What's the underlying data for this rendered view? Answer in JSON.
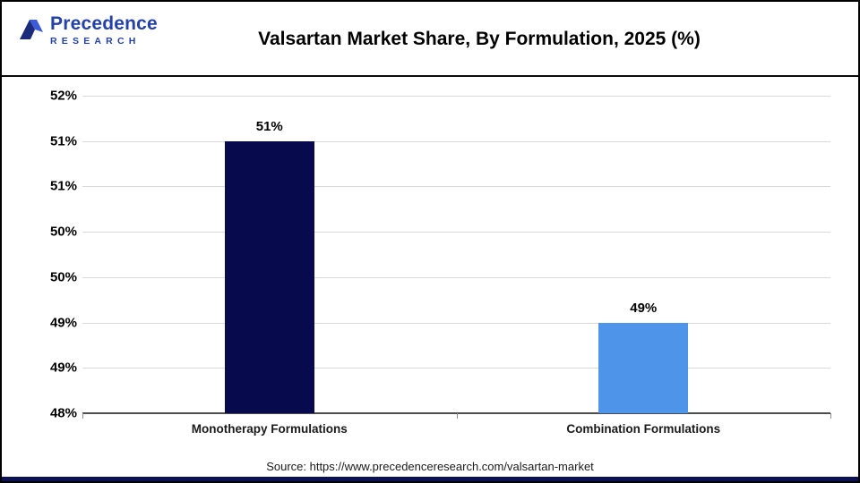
{
  "header": {
    "logo_line1": "Precedence",
    "logo_line2": "RESEARCH",
    "title": "Valsartan Market Share, By Formulation, 2025 (%)"
  },
  "chart_data": {
    "type": "bar",
    "title": "Valsartan Market Share, By Formulation, 2025 (%)",
    "categories": [
      "Monotherapy Formulations",
      "Combination Formulations"
    ],
    "values": [
      51,
      49
    ],
    "value_labels": [
      "51%",
      "49%"
    ],
    "bar_colors": [
      "#070B4E",
      "#4E95E9"
    ],
    "ylim": [
      48,
      51.5
    ],
    "ytick_step": 0.5,
    "ytick_labels_top_to_bottom": [
      "52%",
      "51%",
      "51%",
      "50%",
      "50%",
      "49%",
      "49%",
      "48%"
    ],
    "grid": true,
    "legend": "none",
    "xlabel": "",
    "ylabel": ""
  },
  "footer": {
    "source": "Source: https://www.precedenceresearch.com/valsartan-market"
  }
}
